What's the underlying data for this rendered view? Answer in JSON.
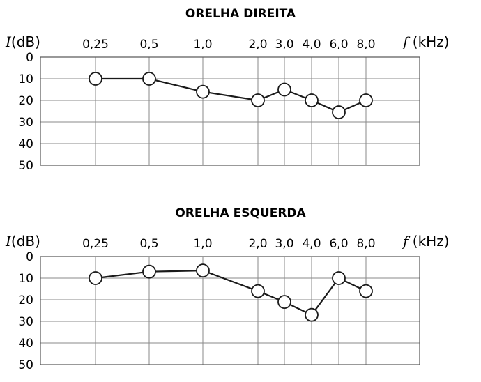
{
  "chart_data": [
    {
      "type": "line",
      "title": "ORELHA DIREITA",
      "ylabel_italic": "I",
      "ylabel_unit": "(dB)",
      "xlabel_italic": "f",
      "xlabel_unit": " (kHz)",
      "categories": [
        "0,25",
        "0,5",
        "1,0",
        "2,0",
        "3,0",
        "4,0",
        "6,0",
        "8,0"
      ],
      "y_ticks": [
        "0",
        "10",
        "20",
        "30",
        "40",
        "50"
      ],
      "ylim": [
        0,
        50
      ],
      "y_inverted": true,
      "grid": true,
      "values": [
        10,
        10,
        16,
        20,
        15,
        20,
        25.5,
        20
      ]
    },
    {
      "type": "line",
      "title": "ORELHA ESQUERDA",
      "ylabel_italic": "I",
      "ylabel_unit": "(dB)",
      "xlabel_italic": "f",
      "xlabel_unit": " (kHz)",
      "categories": [
        "0,25",
        "0,5",
        "1,0",
        "2,0",
        "3,0",
        "4,0",
        "6,0",
        "8,0"
      ],
      "y_ticks": [
        "0",
        "10",
        "20",
        "30",
        "40",
        "50"
      ],
      "ylim": [
        0,
        50
      ],
      "y_inverted": true,
      "grid": true,
      "values": [
        10,
        7,
        6.5,
        16,
        21,
        27,
        10,
        16
      ]
    }
  ]
}
